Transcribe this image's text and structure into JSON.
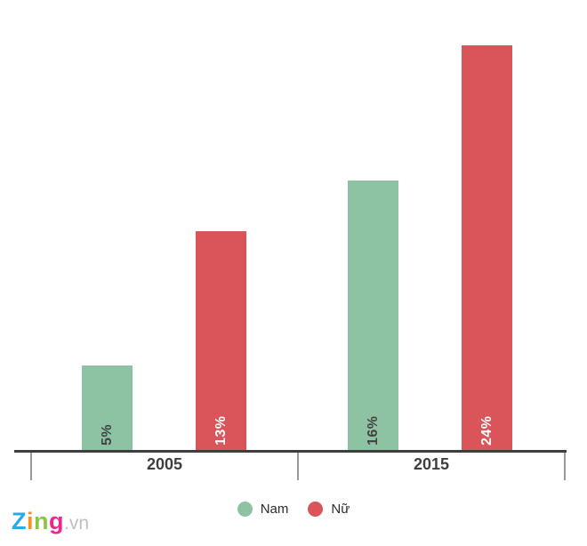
{
  "chart_data": {
    "type": "bar",
    "categories": [
      "2005",
      "2015"
    ],
    "series": [
      {
        "name": "Nam",
        "color": "#8dc3a3",
        "values": [
          5,
          16
        ],
        "labels": [
          "5%",
          "16%"
        ],
        "label_color": "#424242"
      },
      {
        "name": "Nữ",
        "color": "#d9555a",
        "values": [
          13,
          24
        ],
        "labels": [
          "13%",
          "24%"
        ],
        "label_color": "#ffffff"
      }
    ],
    "value_suffix": "%",
    "ylim": [
      0,
      24
    ],
    "grid": false,
    "legend_position": "bottom",
    "axis_color": "#3e3e3e",
    "tick_color": "#999999",
    "category_label_color": "#3f3f3f"
  },
  "branding": {
    "logo_letters": [
      {
        "char": "Z",
        "color": "#2caae2"
      },
      {
        "char": "i",
        "color": "#f6921e"
      },
      {
        "char": "n",
        "color": "#8cc63e"
      },
      {
        "char": "g",
        "color": "#ec268f"
      }
    ],
    "suffix": ".vn",
    "suffix_color": "#c0c0c0"
  }
}
